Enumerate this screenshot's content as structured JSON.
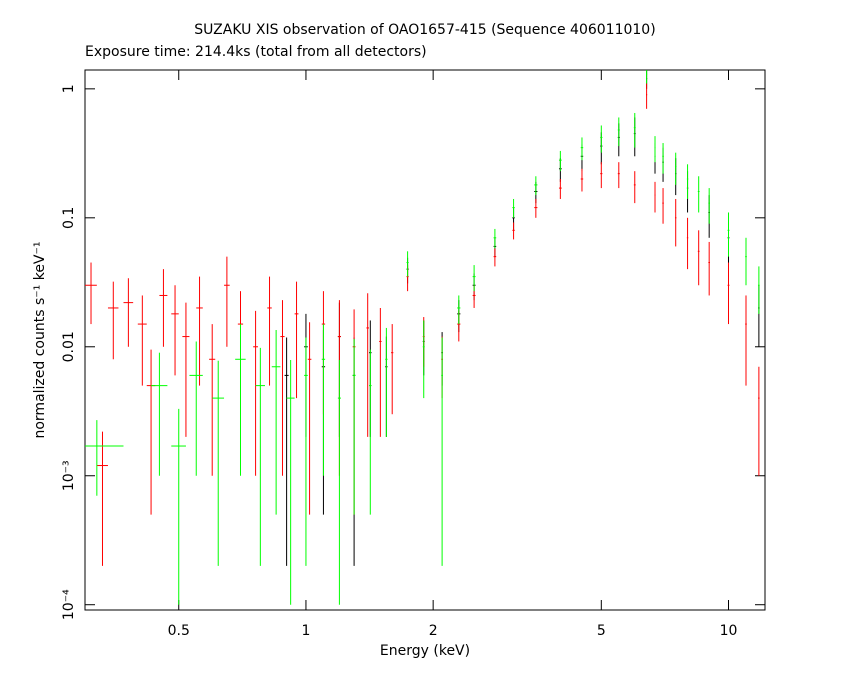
{
  "chart_data": {
    "type": "scatter",
    "title": "SUZAKU XIS observation of OAO1657-415 (Sequence 406011010)",
    "subtitle": "Exposure time: 214.4ks (total from all detectors)",
    "x_label": "Energy (keV)",
    "y_label": "normalized counts s⁻¹ keV⁻¹",
    "xscale": "log",
    "yscale": "log",
    "xlim": [
      0.3,
      12.2
    ],
    "ylim": [
      9.1e-05,
      1.4
    ],
    "xticks": [
      0.5,
      1,
      2,
      5,
      10
    ],
    "yticks": [
      1,
      0.1,
      0.01,
      {
        "value": 0.001,
        "label": "10⁻³"
      },
      {
        "value": 0.0001,
        "label": "10⁻⁴"
      }
    ],
    "series": [
      {
        "color": "#000000",
        "x": [
          0.9,
          1.0,
          1.1,
          1.2,
          1.3,
          1.42,
          1.55,
          1.74,
          1.9,
          2.1,
          2.3,
          2.5,
          2.8,
          3.1,
          3.5,
          4,
          4.5,
          5,
          5.5,
          6,
          6.4,
          6.7,
          7,
          7.5,
          8,
          9,
          10,
          11.8
        ],
        "xerr": [
          0.01,
          0.01,
          0.01,
          0.01,
          0.01,
          0.01,
          0.01,
          0.01,
          0.01,
          0.01,
          0.02,
          0.02,
          0.02,
          0.02,
          0.03,
          0.03,
          0.03,
          0.03,
          0.03,
          0.03,
          0.02,
          0.02,
          0.03,
          0.03,
          0.03,
          0.04,
          0.05,
          0.05
        ],
        "values": [
          0.006,
          0.01,
          0.007,
          0.012,
          0.006,
          0.009,
          0.007,
          0.04,
          0.011,
          0.009,
          0.018,
          0.03,
          0.06,
          0.1,
          0.16,
          0.24,
          0.3,
          0.36,
          0.42,
          0.45,
          1.2,
          0.3,
          0.27,
          0.22,
          0.17,
          0.11,
          0.07,
          0.02
        ],
        "yerr": [
          0.0058,
          0.008,
          0.0065,
          0.01,
          0.0058,
          0.007,
          0.005,
          0.009,
          0.005,
          0.004,
          0.005,
          0.007,
          0.01,
          0.02,
          0.03,
          0.05,
          0.07,
          0.1,
          0.12,
          0.15,
          0.2,
          0.08,
          0.08,
          0.07,
          0.06,
          0.04,
          0.03,
          0.01
        ]
      },
      {
        "color": "#ff0000",
        "x": [
          0.31,
          0.33,
          0.35,
          0.38,
          0.41,
          0.43,
          0.46,
          0.49,
          0.52,
          0.56,
          0.6,
          0.65,
          0.7,
          0.76,
          0.82,
          0.88,
          0.95,
          1.02,
          1.1,
          1.2,
          1.3,
          1.4,
          1.5,
          1.6,
          1.74,
          1.9,
          2.1,
          2.3,
          2.5,
          2.8,
          3.1,
          3.5,
          4,
          4.5,
          5,
          5.5,
          6,
          6.4,
          6.7,
          7,
          7.5,
          8,
          8.5,
          9,
          10,
          11,
          11.8
        ],
        "xerr": [
          0.01,
          0.01,
          0.01,
          0.01,
          0.01,
          0.01,
          0.01,
          0.01,
          0.01,
          0.01,
          0.01,
          0.01,
          0.01,
          0.01,
          0.01,
          0.01,
          0.01,
          0.01,
          0.01,
          0.01,
          0.01,
          0.01,
          0.01,
          0.01,
          0.01,
          0.01,
          0.01,
          0.02,
          0.02,
          0.02,
          0.02,
          0.03,
          0.03,
          0.03,
          0.03,
          0.03,
          0.03,
          0.02,
          0.02,
          0.03,
          0.03,
          0.03,
          0.04,
          0.04,
          0.05,
          0.05,
          0.05
        ],
        "values": [
          0.03,
          0.0012,
          0.02,
          0.022,
          0.015,
          0.005,
          0.025,
          0.018,
          0.012,
          0.02,
          0.008,
          0.03,
          0.015,
          0.01,
          0.02,
          0.012,
          0.018,
          0.008,
          0.015,
          0.012,
          0.01,
          0.014,
          0.011,
          0.009,
          0.035,
          0.012,
          0.008,
          0.015,
          0.025,
          0.05,
          0.08,
          0.12,
          0.17,
          0.2,
          0.22,
          0.22,
          0.18,
          0.9,
          0.15,
          0.13,
          0.1,
          0.07,
          0.055,
          0.045,
          0.03,
          0.015,
          0.004
        ],
        "yerr": [
          0.015,
          0.001,
          0.012,
          0.012,
          0.01,
          0.0045,
          0.015,
          0.012,
          0.01,
          0.015,
          0.007,
          0.02,
          0.012,
          0.009,
          0.015,
          0.011,
          0.014,
          0.0075,
          0.012,
          0.011,
          0.0095,
          0.012,
          0.009,
          0.006,
          0.008,
          0.005,
          0.004,
          0.004,
          0.005,
          0.008,
          0.012,
          0.02,
          0.03,
          0.04,
          0.05,
          0.05,
          0.05,
          0.2,
          0.04,
          0.04,
          0.04,
          0.03,
          0.025,
          0.02,
          0.015,
          0.01,
          0.003
        ]
      },
      {
        "color": "#00ff00",
        "x": [
          0.32,
          0.45,
          0.5,
          0.55,
          0.62,
          0.7,
          0.78,
          0.85,
          0.92,
          1,
          1.1,
          1.2,
          1.3,
          1.42,
          1.55,
          1.74,
          1.9,
          2.1,
          2.3,
          2.5,
          2.8,
          3.1,
          3.5,
          4,
          4.5,
          5,
          5.5,
          6,
          6.4,
          6.7,
          7,
          7.5,
          8,
          8.5,
          9,
          10,
          11,
          11.8
        ],
        "xerr": [
          0.05,
          0.02,
          0.02,
          0.02,
          0.02,
          0.02,
          0.02,
          0.02,
          0.02,
          0.01,
          0.01,
          0.01,
          0.01,
          0.01,
          0.01,
          0.01,
          0.01,
          0.01,
          0.02,
          0.02,
          0.02,
          0.02,
          0.03,
          0.03,
          0.03,
          0.03,
          0.03,
          0.03,
          0.02,
          0.02,
          0.03,
          0.03,
          0.03,
          0.04,
          0.04,
          0.05,
          0.05,
          0.05
        ],
        "values": [
          0.0017,
          0.005,
          0.0017,
          0.006,
          0.004,
          0.008,
          0.005,
          0.007,
          0.004,
          0.006,
          0.008,
          0.004,
          0.006,
          0.005,
          0.008,
          0.045,
          0.01,
          0.006,
          0.02,
          0.035,
          0.07,
          0.12,
          0.18,
          0.28,
          0.35,
          0.42,
          0.48,
          0.5,
          1.3,
          0.35,
          0.3,
          0.25,
          0.2,
          0.16,
          0.13,
          0.08,
          0.05,
          0.03
        ],
        "yerr": [
          0.001,
          0.004,
          0.0016,
          0.005,
          0.0038,
          0.007,
          0.0048,
          0.0065,
          0.0039,
          0.0058,
          0.007,
          0.0039,
          0.0055,
          0.0045,
          0.006,
          0.01,
          0.006,
          0.0058,
          0.005,
          0.008,
          0.012,
          0.02,
          0.03,
          0.05,
          0.07,
          0.1,
          0.12,
          0.15,
          0.2,
          0.08,
          0.08,
          0.07,
          0.06,
          0.05,
          0.04,
          0.03,
          0.02,
          0.012
        ]
      }
    ]
  }
}
